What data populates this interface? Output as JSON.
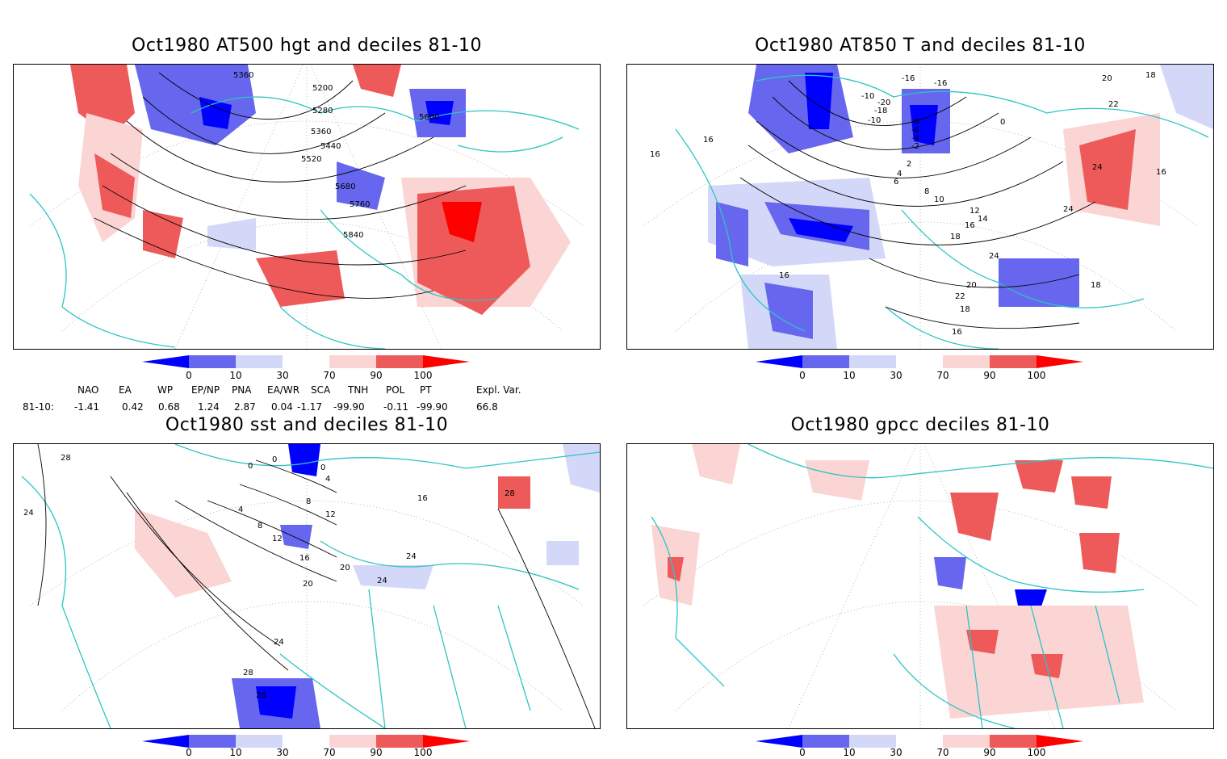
{
  "panels": [
    {
      "title": "Oct1980 AT500 hgt and deciles 81-10",
      "contour_labels": [
        "5360",
        "5200",
        "5280",
        "5360",
        "5440",
        "5520",
        "5600",
        "5680",
        "5760",
        "5840"
      ]
    },
    {
      "title": "Oct1980 AT850 T and deciles 81-10",
      "contour_labels": [
        "-16",
        "-16",
        "-10",
        "-20",
        "-18",
        "-10",
        "-8",
        "-6",
        "-4",
        "-2",
        "0",
        "2",
        "4",
        "6",
        "8",
        "10",
        "12",
        "14",
        "16",
        "18",
        "20",
        "22",
        "24",
        "24",
        "24",
        "16",
        "16",
        "18",
        "16",
        "16",
        "18",
        "20",
        "22",
        "18",
        "16"
      ]
    },
    {
      "title": "Oct1980 sst and deciles 81-10",
      "contour_labels": [
        "28",
        "24",
        "0",
        "0",
        "0",
        "4",
        "4",
        "8",
        "8",
        "12",
        "12",
        "16",
        "16",
        "20",
        "20",
        "24",
        "24",
        "24",
        "28",
        "28",
        "28"
      ]
    },
    {
      "title": "Oct1980 gpcc deciles 81-10",
      "contour_labels": []
    }
  ],
  "colorbar": {
    "labels": [
      "0",
      "10",
      "30",
      "70",
      "90",
      "100"
    ],
    "colors": [
      "#0000ff",
      "#6666ee",
      "#d4d8f8",
      "#ffffff",
      "#fbd4d4",
      "#ee5a5a",
      "#ff0000"
    ]
  },
  "indices": {
    "headers": [
      "NAO",
      "EA",
      "WP",
      "EP/NP",
      "PNA",
      "EA/WR",
      "SCA",
      "TNH",
      "POL",
      "PT",
      "Expl. Var."
    ],
    "row_label": "81-10:",
    "values": [
      "-1.41",
      "0.42",
      "0.68",
      "1.24",
      "2.87",
      "0.04",
      "-1.17",
      "-99.90",
      "-0.11",
      "-99.90",
      "66.8"
    ]
  },
  "legend_colors": {
    "coast": "#2ec4c4",
    "grid": "#9a9a9a",
    "contour": "#000000"
  }
}
